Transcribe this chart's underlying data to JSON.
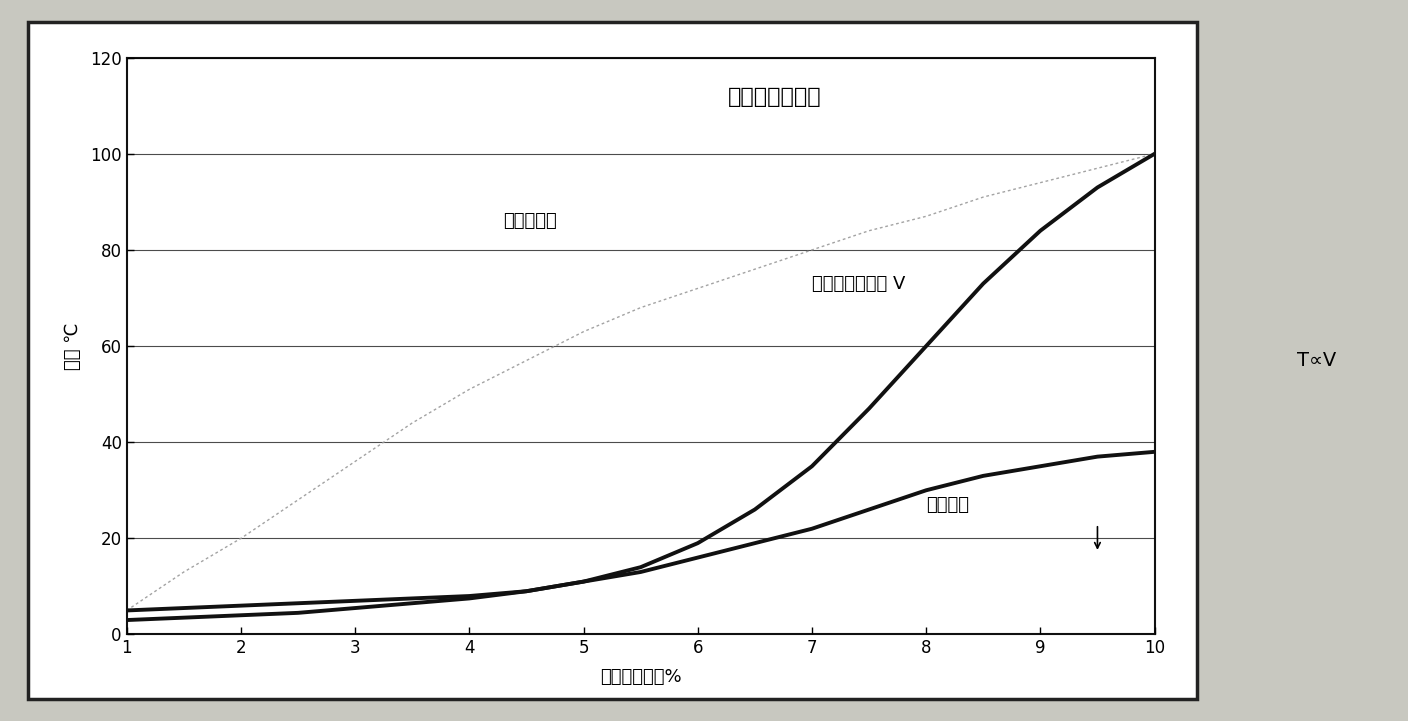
{
  "title": "传统式烧嘴特性",
  "xlabel": "燃烧气体流量%",
  "ylabel": "温度 ℃",
  "right_text": "T∝V",
  "xlim": [
    1,
    10
  ],
  "ylim": [
    0,
    120
  ],
  "xticks": [
    1,
    2,
    3,
    4,
    5,
    6,
    7,
    8,
    9,
    10
  ],
  "yticks": [
    0,
    20,
    40,
    60,
    80,
    100,
    120
  ],
  "x_data": [
    1,
    1.5,
    2,
    2.5,
    3,
    3.5,
    4,
    4.5,
    5,
    5.5,
    6,
    6.5,
    7,
    7.5,
    8,
    8.5,
    9,
    9.5,
    10
  ],
  "furnace_temp": [
    5,
    13,
    20,
    28,
    36,
    44,
    51,
    57,
    63,
    68,
    72,
    76,
    80,
    84,
    87,
    91,
    94,
    97,
    100
  ],
  "air_gas_flow": [
    5,
    5.5,
    6,
    6.5,
    7,
    7.5,
    8,
    9,
    11,
    14,
    19,
    26,
    35,
    47,
    60,
    73,
    84,
    93,
    100
  ],
  "exhaust_temp": [
    3,
    3.5,
    4,
    4.5,
    5.5,
    6.5,
    7.5,
    9,
    11,
    13,
    16,
    19,
    22,
    26,
    30,
    33,
    35,
    37,
    38
  ],
  "furnace_color": "#999999",
  "air_gas_color": "#111111",
  "exhaust_color": "#111111",
  "label_furnace": "加热炉炉温",
  "label_air_gas": "空气、某气流量 V",
  "label_exhaust": "废气温度",
  "title_fontsize": 16,
  "label_fontsize": 13,
  "axis_label_fontsize": 13,
  "tick_fontsize": 12,
  "outer_bg": "#d8d8d0",
  "inner_bg": "#ffffff",
  "plot_bg": "#ffffff"
}
